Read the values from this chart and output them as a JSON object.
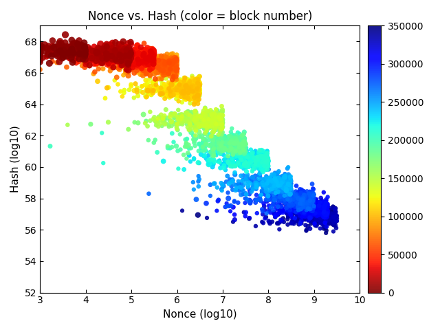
{
  "title": "Nonce vs. Hash (color = block number)",
  "xlabel": "Nonce (log10)",
  "ylabel": "Hash (log10)",
  "xlim": [
    3,
    10
  ],
  "ylim": [
    52,
    69
  ],
  "xticks": [
    3,
    4,
    5,
    6,
    7,
    8,
    9,
    10
  ],
  "yticks": [
    52,
    54,
    56,
    58,
    60,
    62,
    64,
    66,
    68
  ],
  "cbar_min": 0,
  "cbar_max": 350000,
  "cbar_ticks": [
    0,
    50000,
    100000,
    150000,
    200000,
    250000,
    300000,
    350000
  ],
  "colormap": "jet_r",
  "n_points": 5000,
  "seed": 42,
  "title_fontsize": 12,
  "axis_label_fontsize": 11,
  "tick_fontsize": 10,
  "cbar_fontsize": 10,
  "background_color": "#ffffff",
  "figsize": [
    6.4,
    4.8
  ],
  "dpi": 100
}
